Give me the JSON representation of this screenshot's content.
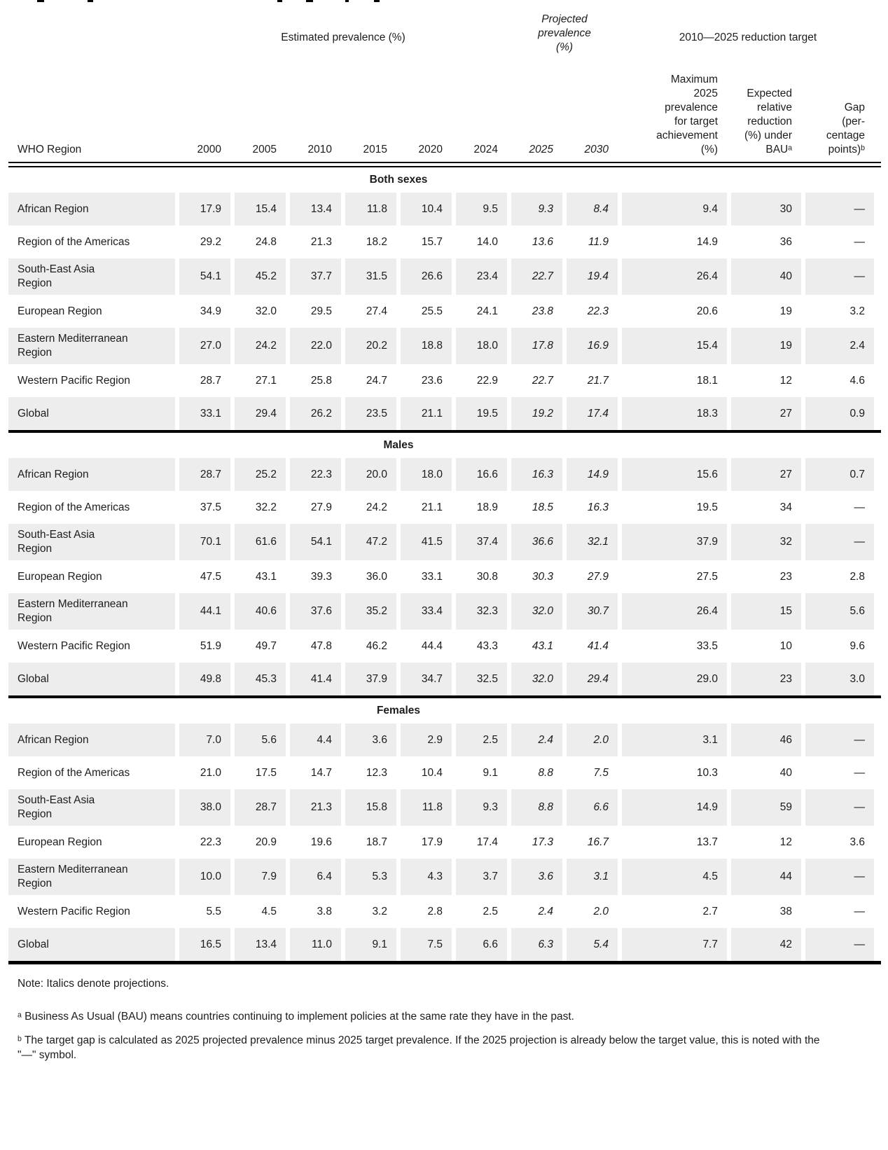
{
  "table": {
    "group_headers": {
      "estimated": "Estimated prevalence (%)",
      "projected": "Projected\nprevalence\n(%)",
      "reduction": "2010—2025 reduction target"
    },
    "columns": {
      "region": "WHO Region",
      "years": [
        "2000",
        "2005",
        "2010",
        "2015",
        "2020",
        "2024",
        "2025",
        "2030"
      ],
      "max2025": "Maximum\n2025\nprevalence\nfor target\nachievement\n(%)",
      "bau": "Expected\nrelative\nreduction\n(%) under\nBAUᵃ",
      "gap": "Gap\n(per-\ncentage\npoints)ᵇ"
    },
    "sections": [
      {
        "title": "Both sexes",
        "rows": [
          {
            "region": "African Region",
            "values": [
              "17.9",
              "15.4",
              "13.4",
              "11.8",
              "10.4",
              "9.5",
              "9.3",
              "8.4",
              "9.4",
              "30",
              "—"
            ]
          },
          {
            "region": "Region of the Americas",
            "values": [
              "29.2",
              "24.8",
              "21.3",
              "18.2",
              "15.7",
              "14.0",
              "13.6",
              "11.9",
              "14.9",
              "36",
              "—"
            ]
          },
          {
            "region": "South-East Asia\nRegion",
            "values": [
              "54.1",
              "45.2",
              "37.7",
              "31.5",
              "26.6",
              "23.4",
              "22.7",
              "19.4",
              "26.4",
              "40",
              "—"
            ]
          },
          {
            "region": "European Region",
            "values": [
              "34.9",
              "32.0",
              "29.5",
              "27.4",
              "25.5",
              "24.1",
              "23.8",
              "22.3",
              "20.6",
              "19",
              "3.2"
            ]
          },
          {
            "region": "Eastern Mediterranean\nRegion",
            "values": [
              "27.0",
              "24.2",
              "22.0",
              "20.2",
              "18.8",
              "18.0",
              "17.8",
              "16.9",
              "15.4",
              "19",
              "2.4"
            ]
          },
          {
            "region": "Western Pacific Region",
            "values": [
              "28.7",
              "27.1",
              "25.8",
              "24.7",
              "23.6",
              "22.9",
              "22.7",
              "21.7",
              "18.1",
              "12",
              "4.6"
            ]
          },
          {
            "region": "Global",
            "values": [
              "33.1",
              "29.4",
              "26.2",
              "23.5",
              "21.1",
              "19.5",
              "19.2",
              "17.4",
              "18.3",
              "27",
              "0.9"
            ]
          }
        ]
      },
      {
        "title": "Males",
        "rows": [
          {
            "region": "African Region",
            "values": [
              "28.7",
              "25.2",
              "22.3",
              "20.0",
              "18.0",
              "16.6",
              "16.3",
              "14.9",
              "15.6",
              "27",
              "0.7"
            ]
          },
          {
            "region": "Region of the Americas",
            "values": [
              "37.5",
              "32.2",
              "27.9",
              "24.2",
              "21.1",
              "18.9",
              "18.5",
              "16.3",
              "19.5",
              "34",
              "—"
            ]
          },
          {
            "region": "South-East Asia\nRegion",
            "values": [
              "70.1",
              "61.6",
              "54.1",
              "47.2",
              "41.5",
              "37.4",
              "36.6",
              "32.1",
              "37.9",
              "32",
              "—"
            ]
          },
          {
            "region": "European Region",
            "values": [
              "47.5",
              "43.1",
              "39.3",
              "36.0",
              "33.1",
              "30.8",
              "30.3",
              "27.9",
              "27.5",
              "23",
              "2.8"
            ]
          },
          {
            "region": "Eastern Mediterranean\nRegion",
            "values": [
              "44.1",
              "40.6",
              "37.6",
              "35.2",
              "33.4",
              "32.3",
              "32.0",
              "30.7",
              "26.4",
              "15",
              "5.6"
            ]
          },
          {
            "region": "Western Pacific Region",
            "values": [
              "51.9",
              "49.7",
              "47.8",
              "46.2",
              "44.4",
              "43.3",
              "43.1",
              "41.4",
              "33.5",
              "10",
              "9.6"
            ]
          },
          {
            "region": "Global",
            "values": [
              "49.8",
              "45.3",
              "41.4",
              "37.9",
              "34.7",
              "32.5",
              "32.0",
              "29.4",
              "29.0",
              "23",
              "3.0"
            ]
          }
        ]
      },
      {
        "title": "Females",
        "rows": [
          {
            "region": "African Region",
            "values": [
              "7.0",
              "5.6",
              "4.4",
              "3.6",
              "2.9",
              "2.5",
              "2.4",
              "2.0",
              "3.1",
              "46",
              "—"
            ]
          },
          {
            "region": "Region of the Americas",
            "values": [
              "21.0",
              "17.5",
              "14.7",
              "12.3",
              "10.4",
              "9.1",
              "8.8",
              "7.5",
              "10.3",
              "40",
              "—"
            ]
          },
          {
            "region": "South-East Asia\nRegion",
            "values": [
              "38.0",
              "28.7",
              "21.3",
              "15.8",
              "11.8",
              "9.3",
              "8.8",
              "6.6",
              "14.9",
              "59",
              "—"
            ]
          },
          {
            "region": "European Region",
            "values": [
              "22.3",
              "20.9",
              "19.6",
              "18.7",
              "17.9",
              "17.4",
              "17.3",
              "16.7",
              "13.7",
              "12",
              "3.6"
            ]
          },
          {
            "region": "Eastern Mediterranean\nRegion",
            "values": [
              "10.0",
              "7.9",
              "6.4",
              "5.3",
              "4.3",
              "3.7",
              "3.6",
              "3.1",
              "4.5",
              "44",
              "—"
            ]
          },
          {
            "region": "Western Pacific Region",
            "values": [
              "5.5",
              "4.5",
              "3.8",
              "3.2",
              "2.8",
              "2.5",
              "2.4",
              "2.0",
              "2.7",
              "38",
              "—"
            ]
          },
          {
            "region": "Global",
            "values": [
              "16.5",
              "13.4",
              "11.0",
              "9.1",
              "7.5",
              "6.6",
              "6.3",
              "5.4",
              "7.7",
              "42",
              "—"
            ]
          }
        ]
      }
    ]
  },
  "notes": {
    "italics": "Note: Italics denote projections.",
    "a": "ᵃ Business As Usual (BAU) means countries continuing to implement policies at the same rate they have in the past.",
    "b": "ᵇ The target gap is calculated as 2025 projected prevalence minus 2025 target prevalence. If the 2025 projection is already below the target value, this is noted with the \"—\" symbol."
  }
}
